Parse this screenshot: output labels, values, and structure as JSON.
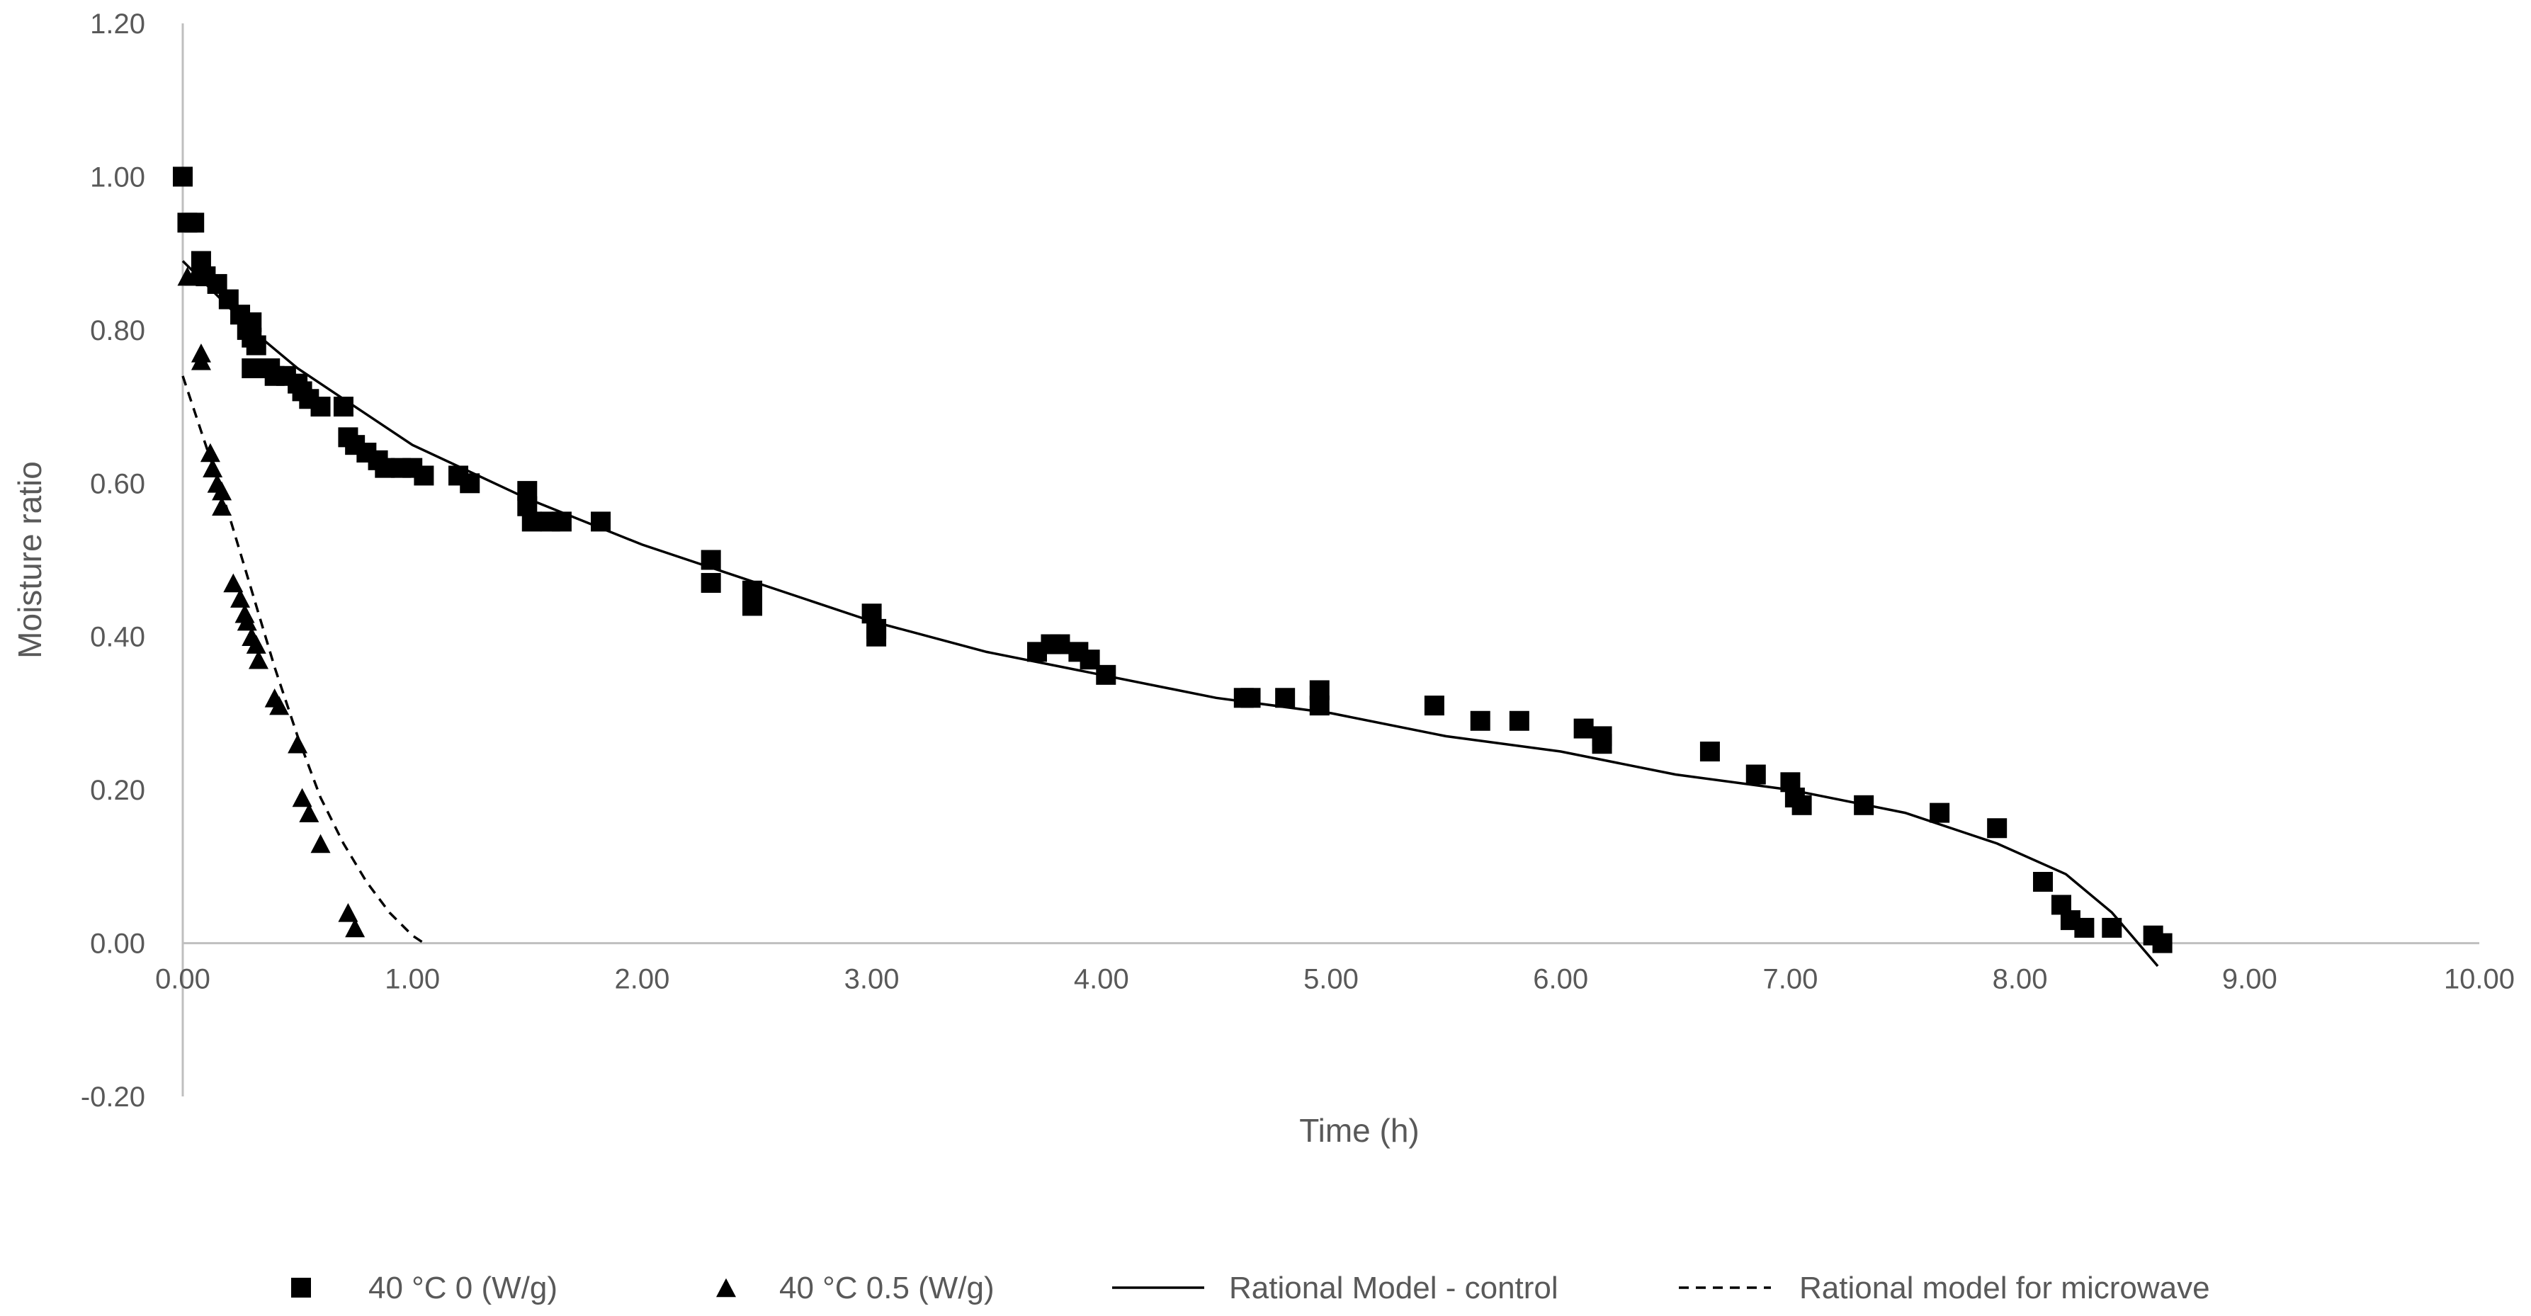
{
  "chart_data": {
    "type": "scatter",
    "title": "",
    "xlabel": "Time (h)",
    "ylabel": "Moisture ratio",
    "xlim": [
      0,
      10
    ],
    "ylim": [
      -0.2,
      1.2
    ],
    "x_ticks": [
      "0.00",
      "1.00",
      "2.00",
      "3.00",
      "4.00",
      "5.00",
      "6.00",
      "7.00",
      "8.00",
      "9.00",
      "10.00"
    ],
    "y_ticks": [
      "-0.20",
      "0.00",
      "0.20",
      "0.40",
      "0.60",
      "0.80",
      "1.00",
      "1.20"
    ],
    "grid": false,
    "legend_position": "bottom",
    "series": [
      {
        "name": "40 °C 0 (W/g)",
        "kind": "scatter",
        "marker": "square",
        "color": "#000000",
        "points": [
          [
            0.0,
            1.0
          ],
          [
            0.02,
            0.94
          ],
          [
            0.05,
            0.94
          ],
          [
            0.08,
            0.89
          ],
          [
            0.1,
            0.87
          ],
          [
            0.15,
            0.86
          ],
          [
            0.2,
            0.84
          ],
          [
            0.25,
            0.82
          ],
          [
            0.28,
            0.8
          ],
          [
            0.3,
            0.81
          ],
          [
            0.32,
            0.78
          ],
          [
            0.3,
            0.79
          ],
          [
            0.3,
            0.75
          ],
          [
            0.38,
            0.75
          ],
          [
            0.4,
            0.74
          ],
          [
            0.45,
            0.74
          ],
          [
            0.5,
            0.73
          ],
          [
            0.52,
            0.72
          ],
          [
            0.55,
            0.71
          ],
          [
            0.6,
            0.7
          ],
          [
            0.7,
            0.7
          ],
          [
            0.72,
            0.66
          ],
          [
            0.75,
            0.65
          ],
          [
            0.8,
            0.64
          ],
          [
            0.85,
            0.63
          ],
          [
            0.88,
            0.62
          ],
          [
            0.95,
            0.62
          ],
          [
            1.0,
            0.62
          ],
          [
            1.05,
            0.61
          ],
          [
            1.2,
            0.61
          ],
          [
            1.25,
            0.6
          ],
          [
            1.5,
            0.59
          ],
          [
            1.5,
            0.57
          ],
          [
            1.52,
            0.55
          ],
          [
            1.6,
            0.55
          ],
          [
            1.65,
            0.55
          ],
          [
            1.82,
            0.55
          ],
          [
            2.3,
            0.5
          ],
          [
            2.3,
            0.47
          ],
          [
            2.48,
            0.46
          ],
          [
            2.48,
            0.44
          ],
          [
            3.0,
            0.43
          ],
          [
            3.02,
            0.41
          ],
          [
            3.02,
            0.4
          ],
          [
            3.72,
            0.38
          ],
          [
            3.78,
            0.39
          ],
          [
            3.82,
            0.39
          ],
          [
            3.9,
            0.38
          ],
          [
            3.95,
            0.37
          ],
          [
            4.02,
            0.35
          ],
          [
            4.62,
            0.32
          ],
          [
            4.65,
            0.32
          ],
          [
            4.8,
            0.32
          ],
          [
            4.95,
            0.33
          ],
          [
            4.95,
            0.31
          ],
          [
            5.45,
            0.31
          ],
          [
            5.65,
            0.29
          ],
          [
            5.82,
            0.29
          ],
          [
            6.1,
            0.28
          ],
          [
            6.18,
            0.27
          ],
          [
            6.18,
            0.26
          ],
          [
            6.65,
            0.25
          ],
          [
            6.85,
            0.22
          ],
          [
            7.0,
            0.21
          ],
          [
            7.02,
            0.19
          ],
          [
            7.05,
            0.18
          ],
          [
            7.32,
            0.18
          ],
          [
            7.65,
            0.17
          ],
          [
            7.9,
            0.15
          ],
          [
            8.1,
            0.08
          ],
          [
            8.18,
            0.05
          ],
          [
            8.22,
            0.03
          ],
          [
            8.28,
            0.02
          ],
          [
            8.4,
            0.02
          ],
          [
            8.58,
            0.01
          ],
          [
            8.62,
            0.0
          ]
        ]
      },
      {
        "name": "40 °C  0.5 (W/g)",
        "kind": "scatter",
        "marker": "triangle",
        "color": "#000000",
        "points": [
          [
            0.02,
            0.87
          ],
          [
            0.05,
            0.87
          ],
          [
            0.08,
            0.77
          ],
          [
            0.08,
            0.76
          ],
          [
            0.12,
            0.64
          ],
          [
            0.13,
            0.62
          ],
          [
            0.15,
            0.6
          ],
          [
            0.17,
            0.59
          ],
          [
            0.17,
            0.57
          ],
          [
            0.22,
            0.47
          ],
          [
            0.25,
            0.45
          ],
          [
            0.27,
            0.43
          ],
          [
            0.28,
            0.42
          ],
          [
            0.3,
            0.4
          ],
          [
            0.32,
            0.39
          ],
          [
            0.33,
            0.37
          ],
          [
            0.4,
            0.32
          ],
          [
            0.42,
            0.31
          ],
          [
            0.5,
            0.26
          ],
          [
            0.52,
            0.19
          ],
          [
            0.55,
            0.17
          ],
          [
            0.6,
            0.13
          ],
          [
            0.72,
            0.04
          ],
          [
            0.75,
            0.02
          ]
        ]
      },
      {
        "name": "Rational Model - control",
        "kind": "line",
        "dash": "solid",
        "color": "#000000",
        "points": [
          [
            0.0,
            0.89
          ],
          [
            0.1,
            0.86
          ],
          [
            0.2,
            0.83
          ],
          [
            0.3,
            0.8
          ],
          [
            0.5,
            0.75
          ],
          [
            0.7,
            0.71
          ],
          [
            1.0,
            0.65
          ],
          [
            1.5,
            0.58
          ],
          [
            2.0,
            0.52
          ],
          [
            2.5,
            0.47
          ],
          [
            3.0,
            0.42
          ],
          [
            3.5,
            0.38
          ],
          [
            4.0,
            0.35
          ],
          [
            4.5,
            0.32
          ],
          [
            5.0,
            0.3
          ],
          [
            5.5,
            0.27
          ],
          [
            6.0,
            0.25
          ],
          [
            6.5,
            0.22
          ],
          [
            7.0,
            0.2
          ],
          [
            7.5,
            0.17
          ],
          [
            7.9,
            0.13
          ],
          [
            8.2,
            0.09
          ],
          [
            8.4,
            0.04
          ],
          [
            8.6,
            -0.03
          ]
        ]
      },
      {
        "name": "Rational model for microwave",
        "kind": "line",
        "dash": "dashed",
        "color": "#000000",
        "points": [
          [
            0.0,
            0.74
          ],
          [
            0.1,
            0.65
          ],
          [
            0.2,
            0.56
          ],
          [
            0.3,
            0.46
          ],
          [
            0.4,
            0.36
          ],
          [
            0.5,
            0.27
          ],
          [
            0.6,
            0.19
          ],
          [
            0.7,
            0.13
          ],
          [
            0.8,
            0.08
          ],
          [
            0.9,
            0.04
          ],
          [
            1.0,
            0.01
          ],
          [
            1.05,
            0.0
          ]
        ]
      }
    ]
  }
}
